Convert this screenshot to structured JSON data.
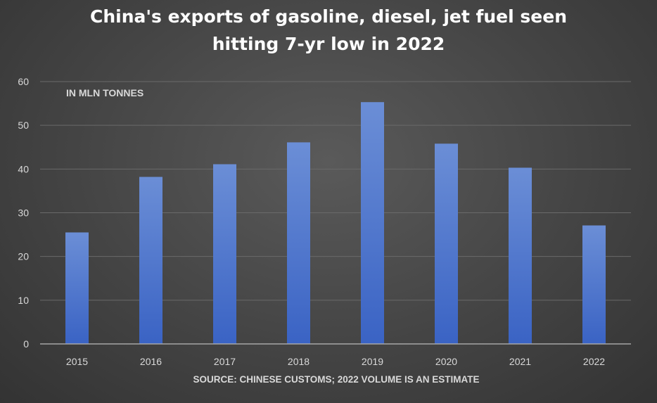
{
  "chart_data": {
    "type": "bar",
    "title": [
      "China's exports of gasoline, diesel, jet fuel seen",
      "hitting 7-yr low in 2022"
    ],
    "unit_label": "IN MLN TONNES",
    "source": "SOURCE: CHINESE CUSTOMS; 2022 VOLUME IS AN ESTIMATE",
    "categories": [
      "2015",
      "2016",
      "2017",
      "2018",
      "2019",
      "2020",
      "2021",
      "2022"
    ],
    "values": [
      25.5,
      38.2,
      41.1,
      46.1,
      55.3,
      45.8,
      40.3,
      27.1
    ],
    "ylim": [
      0,
      60
    ],
    "yticks": [
      0,
      10,
      20,
      30,
      40,
      50,
      60
    ],
    "grid": true,
    "legend": "none",
    "colors": {
      "bar_top": "#6b8ed6",
      "bar_bottom": "#3a63c4",
      "grid": "#6a6a6a",
      "axis": "#a6a6a6",
      "tick_text": "#d9d9d9",
      "title_text": "#ffffff"
    }
  }
}
